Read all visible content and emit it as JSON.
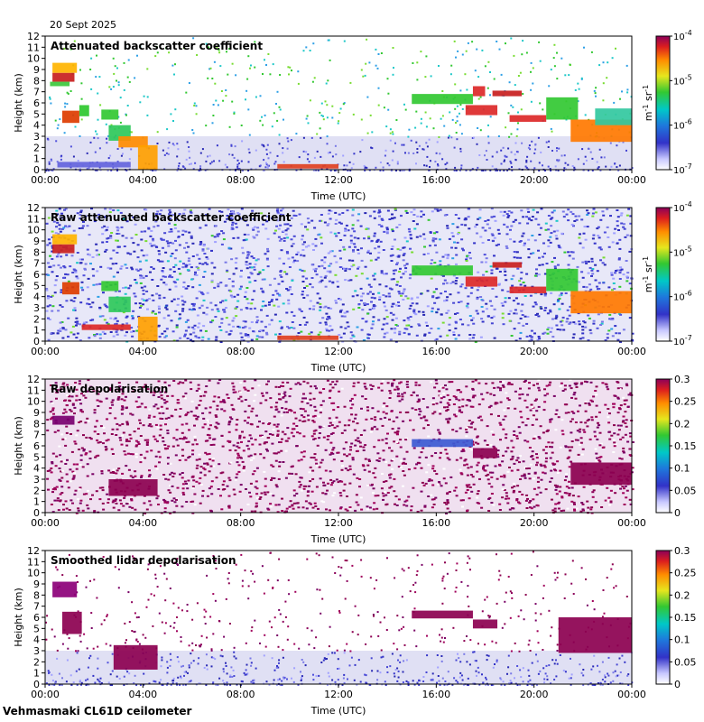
{
  "date_label": "20 Sept 2025",
  "footer_label": "Vehmasmaki CL61D ceilometer",
  "chart_data": [
    {
      "type": "heatmap",
      "title": "Attenuated backscatter coefficient",
      "xlabel": "Time (UTC)",
      "ylabel": "Height (km)",
      "x_ticks": [
        "00:00",
        "04:00",
        "08:00",
        "12:00",
        "16:00",
        "20:00",
        "00:00"
      ],
      "y_ticks": [
        "0",
        "1",
        "2",
        "3",
        "4",
        "5",
        "6",
        "7",
        "8",
        "9",
        "10",
        "11",
        "12"
      ],
      "ylim": [
        0,
        12
      ],
      "colorbar": {
        "scale": "log",
        "range": [
          1e-07,
          0.0001
        ],
        "unit": "m-1 sr-1",
        "tick_base": "10",
        "tick_exponents": [
          "-4",
          "-5",
          "-6",
          "-7"
        ],
        "unit_text": "m",
        "unit_exp1": "-1",
        "unit_text2": " sr",
        "unit_exp2": "-1"
      },
      "noise": "sparse",
      "layers": [
        {
          "t0": 0.3,
          "t1": 1.2,
          "h0": 7.9,
          "h1": 8.7,
          "c": "#c81e1e"
        },
        {
          "t0": 0.3,
          "t1": 1.3,
          "h0": 8.7,
          "h1": 9.6,
          "c": "#ffb400"
        },
        {
          "t0": 0.2,
          "t1": 1.0,
          "h0": 7.5,
          "h1": 7.9,
          "c": "#3cc83c"
        },
        {
          "t0": 0.7,
          "t1": 1.4,
          "h0": 4.2,
          "h1": 5.3,
          "c": "#dd3c00"
        },
        {
          "t0": 1.4,
          "t1": 1.8,
          "h0": 4.8,
          "h1": 5.8,
          "c": "#2ec82e"
        },
        {
          "t0": 2.3,
          "t1": 3.0,
          "h0": 4.5,
          "h1": 5.4,
          "c": "#32c832"
        },
        {
          "t0": 2.6,
          "t1": 3.5,
          "h0": 2.6,
          "h1": 4.0,
          "c": "#2ec85a"
        },
        {
          "t0": 3.0,
          "t1": 4.2,
          "h0": 2.0,
          "h1": 3.0,
          "c": "#ff8c00"
        },
        {
          "t0": 3.8,
          "t1": 4.6,
          "h0": 0.0,
          "h1": 2.2,
          "c": "#ffa000"
        },
        {
          "t0": 0.5,
          "t1": 3.5,
          "h0": 0.2,
          "h1": 0.7,
          "c": "#6464dc"
        },
        {
          "t0": 9.5,
          "t1": 12.0,
          "h0": 0.1,
          "h1": 0.5,
          "c": "#e04020"
        },
        {
          "t0": 15.0,
          "t1": 17.5,
          "h0": 5.9,
          "h1": 6.8,
          "c": "#32c832"
        },
        {
          "t0": 17.2,
          "t1": 18.5,
          "h0": 4.9,
          "h1": 5.8,
          "c": "#dc2828"
        },
        {
          "t0": 17.5,
          "t1": 18.0,
          "h0": 6.6,
          "h1": 7.5,
          "c": "#dc2828"
        },
        {
          "t0": 18.3,
          "t1": 19.5,
          "h0": 6.6,
          "h1": 7.1,
          "c": "#c81e1e"
        },
        {
          "t0": 19.0,
          "t1": 20.5,
          "h0": 4.3,
          "h1": 4.9,
          "c": "#dc2828"
        },
        {
          "t0": 20.5,
          "t1": 21.8,
          "h0": 4.5,
          "h1": 6.5,
          "c": "#32c832"
        },
        {
          "t0": 21.5,
          "t1": 24.0,
          "h0": 2.5,
          "h1": 4.5,
          "c": "#ff7800"
        },
        {
          "t0": 22.5,
          "t1": 24.0,
          "h0": 4.0,
          "h1": 5.5,
          "c": "#32c8a0"
        }
      ]
    },
    {
      "type": "heatmap",
      "title": "Raw attenuated backscatter coefficient",
      "xlabel": "Time (UTC)",
      "ylabel": "Height (km)",
      "x_ticks": [
        "00:00",
        "04:00",
        "08:00",
        "12:00",
        "16:00",
        "20:00",
        "00:00"
      ],
      "y_ticks": [
        "0",
        "1",
        "2",
        "3",
        "4",
        "5",
        "6",
        "7",
        "8",
        "9",
        "10",
        "11",
        "12"
      ],
      "ylim": [
        0,
        12
      ],
      "colorbar": {
        "scale": "log",
        "range": [
          1e-07,
          0.0001
        ],
        "unit": "m-1 sr-1",
        "tick_base": "10",
        "tick_exponents": [
          "-4",
          "-5",
          "-6",
          "-7"
        ],
        "unit_text": "m",
        "unit_exp1": "-1",
        "unit_text2": " sr",
        "unit_exp2": "-1"
      },
      "noise": "dense-blue",
      "layers": [
        {
          "t0": 0.3,
          "t1": 1.2,
          "h0": 7.9,
          "h1": 8.7,
          "c": "#c81e1e"
        },
        {
          "t0": 0.3,
          "t1": 1.3,
          "h0": 8.7,
          "h1": 9.6,
          "c": "#ffb400"
        },
        {
          "t0": 0.7,
          "t1": 1.4,
          "h0": 4.2,
          "h1": 5.3,
          "c": "#dd3c00"
        },
        {
          "t0": 2.3,
          "t1": 3.0,
          "h0": 4.5,
          "h1": 5.4,
          "c": "#32c832"
        },
        {
          "t0": 2.6,
          "t1": 3.5,
          "h0": 2.6,
          "h1": 4.0,
          "c": "#2ec85a"
        },
        {
          "t0": 3.8,
          "t1": 4.6,
          "h0": 0.0,
          "h1": 2.2,
          "c": "#ffa000"
        },
        {
          "t0": 1.5,
          "t1": 3.5,
          "h0": 1.0,
          "h1": 1.5,
          "c": "#dc2828"
        },
        {
          "t0": 9.5,
          "t1": 12.0,
          "h0": 0.1,
          "h1": 0.5,
          "c": "#e04020"
        },
        {
          "t0": 15.0,
          "t1": 17.5,
          "h0": 5.9,
          "h1": 6.8,
          "c": "#32c832"
        },
        {
          "t0": 17.2,
          "t1": 18.5,
          "h0": 4.9,
          "h1": 5.8,
          "c": "#dc2828"
        },
        {
          "t0": 18.3,
          "t1": 19.5,
          "h0": 6.6,
          "h1": 7.1,
          "c": "#c81e1e"
        },
        {
          "t0": 19.0,
          "t1": 20.5,
          "h0": 4.3,
          "h1": 4.9,
          "c": "#dc2828"
        },
        {
          "t0": 20.5,
          "t1": 21.8,
          "h0": 4.5,
          "h1": 6.5,
          "c": "#32c832"
        },
        {
          "t0": 21.5,
          "t1": 24.0,
          "h0": 2.5,
          "h1": 4.5,
          "c": "#ff7800"
        }
      ]
    },
    {
      "type": "heatmap",
      "title": "Raw depolarisation",
      "xlabel": "Time (UTC)",
      "ylabel": "Height (km)",
      "x_ticks": [
        "00:00",
        "04:00",
        "08:00",
        "12:00",
        "16:00",
        "20:00",
        "00:00"
      ],
      "y_ticks": [
        "0",
        "1",
        "2",
        "3",
        "4",
        "5",
        "6",
        "7",
        "8",
        "9",
        "10",
        "11",
        "12"
      ],
      "ylim": [
        0,
        12
      ],
      "colorbar": {
        "scale": "linear",
        "range": [
          0,
          0.3
        ],
        "ticks": [
          "0.3",
          "0.25",
          "0.2",
          "0.15",
          "0.1",
          "0.05",
          "0"
        ]
      },
      "noise": "dense-purple",
      "layers": [
        {
          "t0": 0.3,
          "t1": 1.2,
          "h0": 7.9,
          "h1": 8.7,
          "c": "#7a0070"
        },
        {
          "t0": 2.6,
          "t1": 4.6,
          "h0": 1.5,
          "h1": 3.0,
          "c": "#8c0050"
        },
        {
          "t0": 15.0,
          "t1": 17.5,
          "h0": 5.9,
          "h1": 6.6,
          "c": "#3c5ad2"
        },
        {
          "t0": 17.5,
          "t1": 18.5,
          "h0": 4.9,
          "h1": 5.8,
          "c": "#8c0050"
        },
        {
          "t0": 21.5,
          "t1": 24.0,
          "h0": 2.5,
          "h1": 4.5,
          "c": "#8c0050"
        }
      ]
    },
    {
      "type": "heatmap",
      "title": "Smoothed lidar depolarisation",
      "xlabel": "Time (UTC)",
      "ylabel": "Height (km)",
      "x_ticks": [
        "00:00",
        "04:00",
        "08:00",
        "12:00",
        "16:00",
        "20:00",
        "00:00"
      ],
      "y_ticks": [
        "0",
        "1",
        "2",
        "3",
        "4",
        "5",
        "6",
        "7",
        "8",
        "9",
        "10",
        "11",
        "12"
      ],
      "ylim": [
        0,
        12
      ],
      "colorbar": {
        "scale": "linear",
        "range": [
          0,
          0.3
        ],
        "ticks": [
          "0.3",
          "0.25",
          "0.2",
          "0.15",
          "0.1",
          "0.05",
          "0"
        ]
      },
      "noise": "sparse-purple",
      "layers": [
        {
          "t0": 0.3,
          "t1": 1.3,
          "h0": 7.8,
          "h1": 9.2,
          "c": "#8c0078"
        },
        {
          "t0": 0.7,
          "t1": 1.5,
          "h0": 4.5,
          "h1": 6.5,
          "c": "#8c0050"
        },
        {
          "t0": 2.8,
          "t1": 4.6,
          "h0": 1.3,
          "h1": 3.5,
          "c": "#8c0050"
        },
        {
          "t0": 15.0,
          "t1": 17.5,
          "h0": 5.9,
          "h1": 6.6,
          "c": "#8c0050"
        },
        {
          "t0": 17.5,
          "t1": 18.5,
          "h0": 5.0,
          "h1": 5.8,
          "c": "#8c0050"
        },
        {
          "t0": 21.0,
          "t1": 24.0,
          "h0": 2.8,
          "h1": 6.0,
          "c": "#8c0050"
        }
      ]
    }
  ]
}
